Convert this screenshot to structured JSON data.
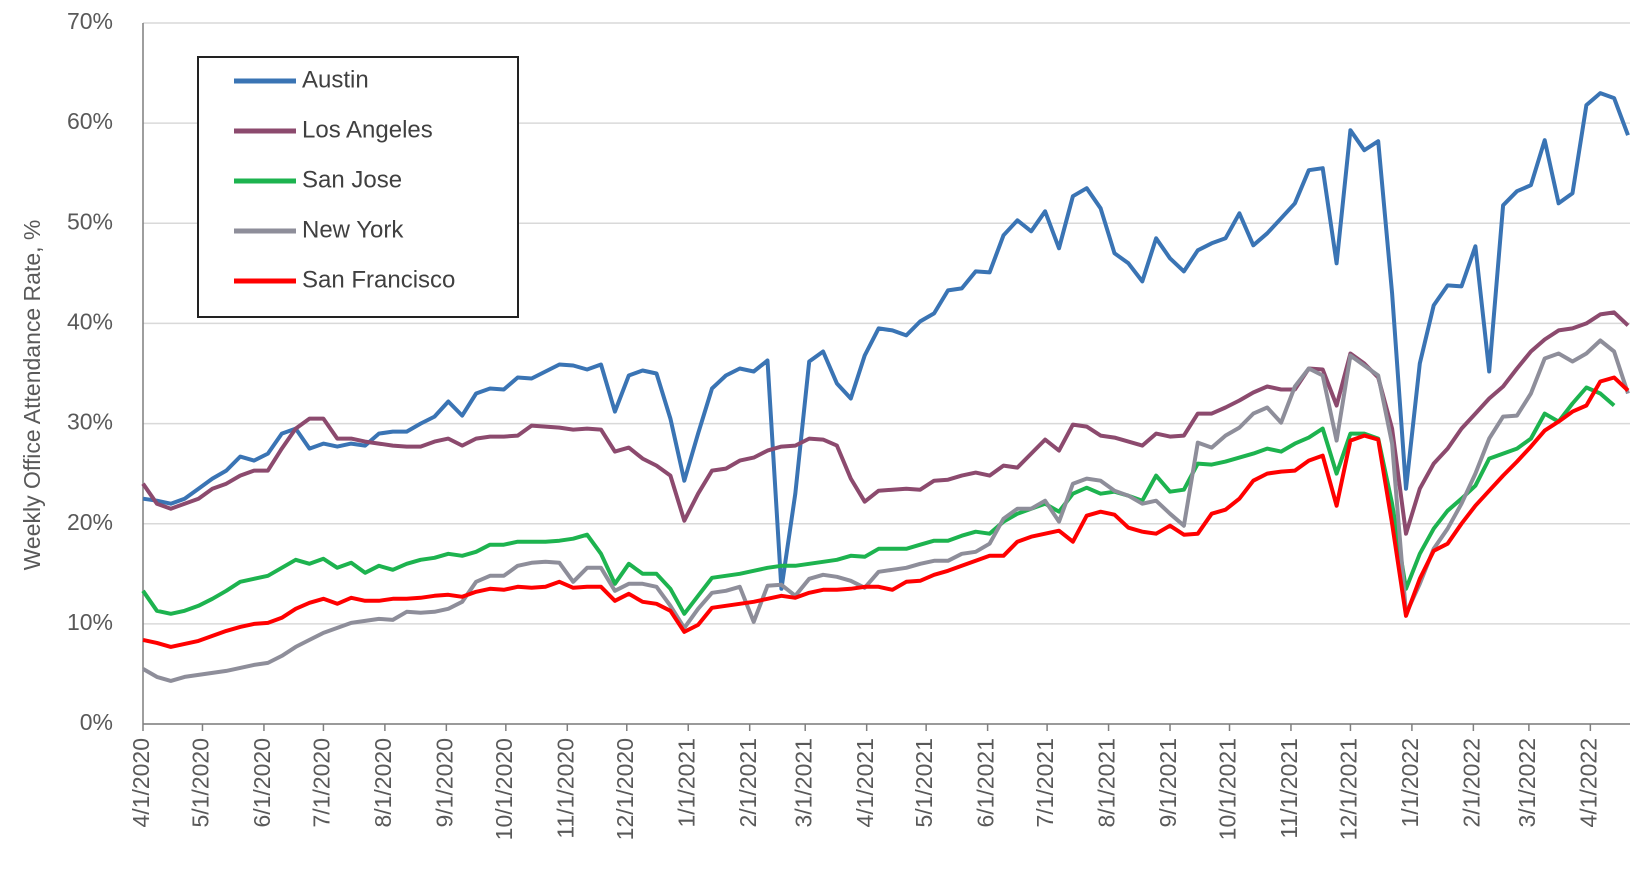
{
  "chart_data": {
    "type": "line",
    "y_label": "Weekly Office Attendance  Rate, %",
    "x": [
      "2020-04-01",
      "2020-04-08",
      "2020-04-15",
      "2020-04-22",
      "2020-04-29",
      "2020-05-06",
      "2020-05-13",
      "2020-05-20",
      "2020-05-27",
      "2020-06-03",
      "2020-06-10",
      "2020-06-17",
      "2020-06-24",
      "2020-07-01",
      "2020-07-08",
      "2020-07-15",
      "2020-07-22",
      "2020-07-29",
      "2020-08-05",
      "2020-08-12",
      "2020-08-19",
      "2020-08-26",
      "2020-09-02",
      "2020-09-09",
      "2020-09-16",
      "2020-09-23",
      "2020-09-30",
      "2020-10-07",
      "2020-10-14",
      "2020-10-21",
      "2020-10-28",
      "2020-11-04",
      "2020-11-11",
      "2020-11-18",
      "2020-11-25",
      "2020-12-02",
      "2020-12-09",
      "2020-12-16",
      "2020-12-23",
      "2020-12-30",
      "2021-01-06",
      "2021-01-13",
      "2021-01-20",
      "2021-01-27",
      "2021-02-03",
      "2021-02-10",
      "2021-02-17",
      "2021-02-24",
      "2021-03-03",
      "2021-03-10",
      "2021-03-17",
      "2021-03-24",
      "2021-03-31",
      "2021-04-07",
      "2021-04-14",
      "2021-04-21",
      "2021-04-28",
      "2021-05-05",
      "2021-05-12",
      "2021-05-19",
      "2021-05-26",
      "2021-06-02",
      "2021-06-09",
      "2021-06-16",
      "2021-06-23",
      "2021-06-30",
      "2021-07-07",
      "2021-07-14",
      "2021-07-21",
      "2021-07-28",
      "2021-08-04",
      "2021-08-11",
      "2021-08-18",
      "2021-08-25",
      "2021-09-01",
      "2021-09-08",
      "2021-09-15",
      "2021-09-22",
      "2021-09-29",
      "2021-10-06",
      "2021-10-13",
      "2021-10-20",
      "2021-10-27",
      "2021-11-03",
      "2021-11-10",
      "2021-11-17",
      "2021-11-24",
      "2021-12-01",
      "2021-12-08",
      "2021-12-15",
      "2021-12-22",
      "2021-12-29",
      "2022-01-05",
      "2022-01-12",
      "2022-01-19",
      "2022-01-26",
      "2022-02-02",
      "2022-02-09",
      "2022-02-16",
      "2022-02-23",
      "2022-03-02",
      "2022-03-09",
      "2022-03-16",
      "2022-03-23",
      "2022-03-30",
      "2022-04-06",
      "2022-04-13",
      "2022-04-20"
    ],
    "series": [
      {
        "name": "Austin",
        "color": "#3a74b4",
        "values": [
          22.5,
          22.3,
          22,
          22.5,
          23.5,
          24.5,
          25.3,
          26.7,
          26.3,
          27,
          29,
          29.5,
          27.5,
          28,
          27.7,
          28,
          27.8,
          29,
          29.2,
          29.2,
          30,
          30.7,
          32.2,
          30.8,
          33,
          33.5,
          33.4,
          34.6,
          34.5,
          35.2,
          35.9,
          35.8,
          35.4,
          35.9,
          31.2,
          34.8,
          35.3,
          35,
          30.5,
          24.3,
          29,
          33.5,
          34.8,
          35.5,
          35.2,
          36.3,
          13.5,
          23,
          36.2,
          37.2,
          34,
          32.5,
          36.8,
          39.5,
          39.3,
          38.8,
          40.2,
          41,
          43.3,
          43.5,
          45.2,
          45.1,
          48.8,
          50.3,
          49.2,
          51.2,
          47.5,
          52.7,
          53.5,
          51.5,
          47,
          46,
          44.2,
          48.5,
          46.5,
          45.2,
          47.3,
          48,
          48.5,
          51,
          47.8,
          49,
          50.5,
          52,
          55.3,
          55.5,
          46,
          59.3,
          57.3,
          58.2,
          43,
          23.5,
          36,
          41.8,
          43.8,
          43.7,
          47.7,
          35.2,
          51.8,
          53.2,
          53.8,
          58.3,
          52,
          53,
          61.8,
          63,
          62.5,
          58.8
        ]
      },
      {
        "name": "Los Angeles",
        "color": "#8c4a6e",
        "values": [
          24,
          22,
          21.5,
          22,
          22.5,
          23.5,
          24,
          24.8,
          25.3,
          25.3,
          27.5,
          29.5,
          30.5,
          30.5,
          28.5,
          28.5,
          28.2,
          28,
          27.8,
          27.7,
          27.7,
          28.2,
          28.5,
          27.8,
          28.5,
          28.7,
          28.7,
          28.8,
          29.8,
          29.7,
          29.6,
          29.4,
          29.5,
          29.4,
          27.2,
          27.6,
          26.5,
          25.8,
          24.8,
          20.3,
          23,
          25.3,
          25.5,
          26.3,
          26.6,
          27.3,
          27.7,
          27.8,
          28.5,
          28.4,
          27.8,
          24.5,
          22.2,
          23.3,
          23.4,
          23.5,
          23.4,
          24.3,
          24.4,
          24.8,
          25.1,
          24.8,
          25.8,
          25.6,
          27,
          28.4,
          27.3,
          29.9,
          29.7,
          28.8,
          28.6,
          28.2,
          27.8,
          29,
          28.7,
          28.8,
          31,
          31,
          31.6,
          32.3,
          33.1,
          33.7,
          33.4,
          33.4,
          35.5,
          35.4,
          31.8,
          37,
          36,
          34.6,
          29.5,
          19,
          23.5,
          26,
          27.5,
          29.5,
          31,
          32.5,
          33.7,
          35.5,
          37.2,
          38.4,
          39.3,
          39.5,
          40,
          40.9,
          41.1,
          39.8
        ]
      },
      {
        "name": "San Jose",
        "color": "#1db34f",
        "values": [
          13.3,
          11.3,
          11,
          11.3,
          11.8,
          12.5,
          13.3,
          14.2,
          14.5,
          14.8,
          15.6,
          16.4,
          16,
          16.5,
          15.6,
          16.1,
          15.1,
          15.8,
          15.4,
          16,
          16.4,
          16.6,
          17,
          16.8,
          17.2,
          17.9,
          17.9,
          18.2,
          18.2,
          18.2,
          18.3,
          18.5,
          18.9,
          17,
          14,
          16,
          15,
          15,
          13.5,
          11,
          12.8,
          14.6,
          14.8,
          15,
          15.3,
          15.6,
          15.8,
          15.8,
          16,
          16.2,
          16.4,
          16.8,
          16.7,
          17.5,
          17.5,
          17.5,
          17.9,
          18.3,
          18.3,
          18.8,
          19.2,
          19,
          20.2,
          21,
          21.5,
          22,
          21.2,
          23,
          23.6,
          23,
          23.2,
          22.8,
          22.3,
          24.8,
          23.2,
          23.4,
          26,
          25.9,
          26.2,
          26.6,
          27,
          27.5,
          27.2,
          28,
          28.6,
          29.5,
          25,
          29,
          29,
          28.5,
          22,
          13.5,
          17,
          19.5,
          21.3,
          22.5,
          23.8,
          26.5,
          27,
          27.5,
          28.5,
          31,
          30.2,
          32,
          33.6,
          33,
          31.8,
          null
        ]
      },
      {
        "name": "New York",
        "color": "#8e8e9a",
        "values": [
          5.5,
          4.7,
          4.3,
          4.7,
          4.9,
          5.1,
          5.3,
          5.6,
          5.9,
          6.1,
          6.8,
          7.7,
          8.4,
          9.1,
          9.6,
          10.1,
          10.3,
          10.5,
          10.4,
          11.2,
          11.1,
          11.2,
          11.5,
          12.2,
          14.2,
          14.8,
          14.8,
          15.8,
          16.1,
          16.2,
          16.1,
          14.2,
          15.6,
          15.6,
          13.3,
          14,
          14,
          13.7,
          11.8,
          9.6,
          11.5,
          13.1,
          13.3,
          13.7,
          10.2,
          13.8,
          13.9,
          12.8,
          14.5,
          14.9,
          14.7,
          14.3,
          13.6,
          15.2,
          15.4,
          15.6,
          16,
          16.3,
          16.3,
          17,
          17.2,
          18,
          20.5,
          21.5,
          21.5,
          22.3,
          20.2,
          24,
          24.5,
          24.3,
          23.3,
          22.8,
          22,
          22.3,
          21,
          19.8,
          28.1,
          27.6,
          28.8,
          29.6,
          31,
          31.6,
          30.1,
          33.7,
          35.5,
          34.8,
          28.3,
          36.8,
          35.8,
          34.8,
          28,
          11,
          14,
          17.5,
          19.5,
          22,
          25,
          28.5,
          30.7,
          30.8,
          33,
          36.5,
          37,
          36.2,
          37,
          38.3,
          37.2,
          33
        ]
      },
      {
        "name": "San Francisco",
        "color": "#ff0000",
        "values": [
          8.4,
          8.1,
          7.7,
          8,
          8.3,
          8.8,
          9.3,
          9.7,
          10,
          10.1,
          10.6,
          11.5,
          12.1,
          12.5,
          12,
          12.6,
          12.3,
          12.3,
          12.5,
          12.5,
          12.6,
          12.8,
          12.9,
          12.7,
          13.2,
          13.5,
          13.4,
          13.7,
          13.6,
          13.7,
          14.2,
          13.6,
          13.7,
          13.7,
          12.3,
          13,
          12.2,
          12,
          11.3,
          9.2,
          9.9,
          11.6,
          11.8,
          12,
          12.2,
          12.5,
          12.8,
          12.6,
          13.1,
          13.4,
          13.4,
          13.5,
          13.7,
          13.7,
          13.4,
          14.2,
          14.3,
          14.9,
          15.3,
          15.8,
          16.3,
          16.8,
          16.8,
          18.2,
          18.7,
          19,
          19.3,
          18.2,
          20.8,
          21.2,
          20.9,
          19.6,
          19.2,
          19,
          19.8,
          18.9,
          19,
          21,
          21.4,
          22.5,
          24.3,
          25,
          25.2,
          25.3,
          26.3,
          26.8,
          21.8,
          28.3,
          28.8,
          28.4,
          20,
          10.8,
          14.5,
          17.3,
          18,
          20,
          21.8,
          23.3,
          24.8,
          26.2,
          27.7,
          29.3,
          30.2,
          31.2,
          31.8,
          34.2,
          34.6,
          33.3
        ]
      }
    ],
    "xlim": [
      "2020-04-01",
      "2022-04-21"
    ],
    "xticks": [
      {
        "value": "2020-04-01",
        "label": "4/1/2020"
      },
      {
        "value": "2020-05-01",
        "label": "5/1/2020"
      },
      {
        "value": "2020-06-01",
        "label": "6/1/2020"
      },
      {
        "value": "2020-07-01",
        "label": "7/1/2020"
      },
      {
        "value": "2020-08-01",
        "label": "8/1/2020"
      },
      {
        "value": "2020-09-01",
        "label": "9/1/2020"
      },
      {
        "value": "2020-10-01",
        "label": "10/1/2020"
      },
      {
        "value": "2020-11-01",
        "label": "11/1/2020"
      },
      {
        "value": "2020-12-01",
        "label": "12/1/2020"
      },
      {
        "value": "2021-01-01",
        "label": "1/1/2021"
      },
      {
        "value": "2021-02-01",
        "label": "2/1/2021"
      },
      {
        "value": "2021-03-01",
        "label": "3/1/2021"
      },
      {
        "value": "2021-04-01",
        "label": "4/1/2021"
      },
      {
        "value": "2021-05-01",
        "label": "5/1/2021"
      },
      {
        "value": "2021-06-01",
        "label": "6/1/2021"
      },
      {
        "value": "2021-07-01",
        "label": "7/1/2021"
      },
      {
        "value": "2021-08-01",
        "label": "8/1/2021"
      },
      {
        "value": "2021-09-01",
        "label": "9/1/2021"
      },
      {
        "value": "2021-10-01",
        "label": "10/1/2021"
      },
      {
        "value": "2021-11-01",
        "label": "11/1/2021"
      },
      {
        "value": "2021-12-01",
        "label": "12/1/2021"
      },
      {
        "value": "2022-01-01",
        "label": "1/1/2022"
      },
      {
        "value": "2022-02-01",
        "label": "2/1/2022"
      },
      {
        "value": "2022-03-01",
        "label": "3/1/2022"
      },
      {
        "value": "2022-04-01",
        "label": "4/1/2022"
      }
    ],
    "ylim": [
      0,
      70
    ],
    "yticks": [
      {
        "value": 0,
        "label": "0%"
      },
      {
        "value": 10,
        "label": "10%"
      },
      {
        "value": 20,
        "label": "20%"
      },
      {
        "value": 30,
        "label": "30%"
      },
      {
        "value": 40,
        "label": "40%"
      },
      {
        "value": 50,
        "label": "50%"
      },
      {
        "value": 60,
        "label": "60%"
      },
      {
        "value": 70,
        "label": "70%"
      }
    ],
    "grid": true,
    "legend": "upper left"
  }
}
